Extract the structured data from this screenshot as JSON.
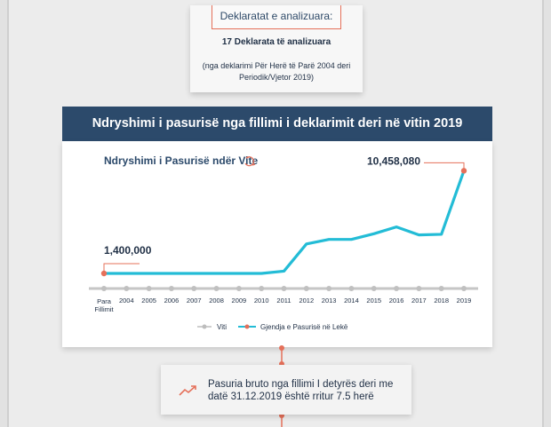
{
  "top_card": {
    "tag": "Deklaratat e analizuara:",
    "count": "17 Deklarata të analizuara",
    "note": "(nga deklarimi Për Herë të Parë 2004 deri Periodik/Vjetor 2019)"
  },
  "banner": {
    "title": "Ndryshimi i pasurisë nga fillimi i deklarimit deri në vitin 2019"
  },
  "chart_data": {
    "type": "line",
    "title": "Ndryshimi i Pasurisë ndër Vite",
    "categories": [
      "Para Fillimit",
      "2004",
      "2005",
      "2006",
      "2007",
      "2008",
      "2009",
      "2010",
      "2011",
      "2012",
      "2013",
      "2014",
      "2015",
      "2016",
      "2017",
      "2018",
      "2019"
    ],
    "series": [
      {
        "name": "Gjendja e Pasurisë në Lekë",
        "values": [
          1400000,
          1400000,
          1400000,
          1400000,
          1400000,
          1400000,
          1400000,
          1400000,
          1600000,
          4000000,
          4400000,
          4400000,
          4900000,
          5500000,
          4800000,
          4850000,
          10458080
        ]
      }
    ],
    "axis_legend": "Viti",
    "annotations": {
      "start": "1,400,000",
      "end": "10,458,080"
    },
    "ylim": [
      0,
      11000000
    ],
    "colors": {
      "line": "#23bcd6",
      "dots": "#e5705a",
      "axis": "#c6c6c6",
      "title": "#2c4a6b"
    }
  },
  "bottom_card": {
    "icon": "trend-up-icon",
    "text": "Pasuria bruto nga fillimi I detyrës deri me datë 31.12.2019 është rritur 7.5 herë"
  },
  "colors": {
    "accent": "#e5705a",
    "navy": "#2c4a6b"
  }
}
